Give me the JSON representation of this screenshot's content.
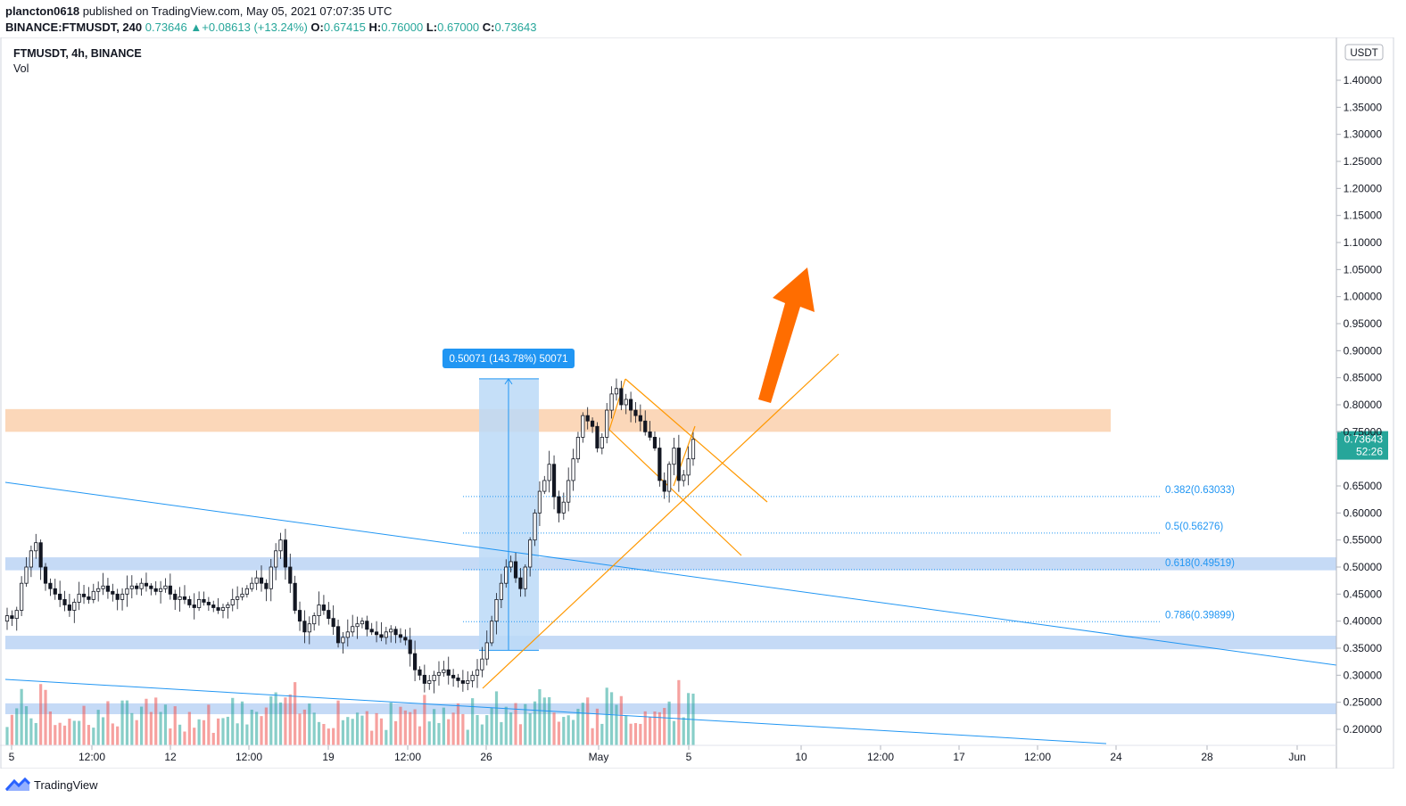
{
  "publish_line": {
    "author": "plancton0618",
    "text": " published on TradingView.com, May 05, 2021 07:07:35 UTC"
  },
  "ohlc": {
    "symbol": "BINANCE:FTMUSDT, 240",
    "last": "0.73646",
    "arrow": "▲",
    "change": "+0.08613 (+13.24%)",
    "o_label": "O:",
    "o": "0.67415",
    "h_label": "H:",
    "h": "0.76000",
    "l_label": "L:",
    "l": "0.67000",
    "c_label": "C:",
    "c": "0.73643"
  },
  "legend": {
    "symbol": "FTMUSDT, 4h, BINANCE",
    "indicator": "Vol"
  },
  "footer": {
    "brand": "TradingView"
  },
  "colors": {
    "up": "#26a69a",
    "down": "#ef5350",
    "fib": "#2196f3",
    "zone_blue": "#bbd3f5",
    "zone_orange": "#fbd3b1",
    "pattern": "#ff9800",
    "arrow": "#ff6d00"
  },
  "chart_data": {
    "type": "candlestick",
    "currency": "USDT",
    "price_axis": {
      "ticks": [
        "1.40000",
        "1.35000",
        "1.30000",
        "1.25000",
        "1.20000",
        "1.15000",
        "1.10000",
        "1.05000",
        "1.00000",
        "0.95000",
        "0.90000",
        "0.85000",
        "0.80000",
        "0.75000",
        "0.65000",
        "0.60000",
        "0.55000",
        "0.50000",
        "0.45000",
        "0.40000",
        "0.35000",
        "0.30000",
        "0.25000",
        "0.20000"
      ],
      "range": [
        0.17,
        1.44
      ]
    },
    "time_axis": {
      "ticks": [
        "5",
        "12:00",
        "12",
        "12:00",
        "19",
        "12:00",
        "26",
        "May",
        "5",
        "10",
        "12:00",
        "17",
        "12:00",
        "24",
        "28",
        "Jun"
      ]
    },
    "last_price": {
      "value": "0.73643",
      "countdown": "52:26"
    },
    "fibonacci": [
      {
        "label": "0.382(0.63033)",
        "value": 0.63033
      },
      {
        "label": "0.5(0.56276)",
        "value": 0.56276
      },
      {
        "label": "0.618(0.49519)",
        "value": 0.49519
      },
      {
        "label": "0.786(0.39899)",
        "value": 0.39899
      }
    ],
    "measure_label": "0.50071 (143.78%) 50071",
    "measure_range": [
      0.346,
      0.848
    ],
    "resistance_zone": [
      0.75,
      0.792
    ],
    "support_zones": [
      [
        0.494,
        0.518
      ],
      [
        0.348,
        0.373
      ],
      [
        0.228,
        0.248
      ]
    ],
    "trendlines": [
      {
        "from": [
          "Apr 5",
          0.655
        ],
        "to": [
          "Jun 1",
          0.318
        ]
      },
      {
        "from": [
          "Apr 5",
          0.293
        ],
        "to": [
          "May 24",
          0.18
        ]
      }
    ],
    "candles": {
      "note": "approximate 4h OHLC path from Apr 5 to May 5 2021",
      "closes": [
        0.41,
        0.405,
        0.42,
        0.47,
        0.5,
        0.53,
        0.545,
        0.5,
        0.47,
        0.46,
        0.45,
        0.44,
        0.43,
        0.42,
        0.435,
        0.45,
        0.445,
        0.44,
        0.455,
        0.46,
        0.465,
        0.455,
        0.45,
        0.44,
        0.45,
        0.46,
        0.465,
        0.46,
        0.47,
        0.465,
        0.46,
        0.455,
        0.46,
        0.465,
        0.45,
        0.44,
        0.445,
        0.44,
        0.43,
        0.425,
        0.44,
        0.435,
        0.43,
        0.425,
        0.42,
        0.425,
        0.43,
        0.44,
        0.445,
        0.45,
        0.46,
        0.47,
        0.48,
        0.47,
        0.46,
        0.5,
        0.53,
        0.55,
        0.5,
        0.47,
        0.42,
        0.4,
        0.38,
        0.395,
        0.41,
        0.43,
        0.42,
        0.405,
        0.39,
        0.36,
        0.37,
        0.38,
        0.39,
        0.395,
        0.4,
        0.385,
        0.38,
        0.375,
        0.37,
        0.38,
        0.385,
        0.375,
        0.37,
        0.365,
        0.34,
        0.31,
        0.3,
        0.285,
        0.29,
        0.3,
        0.305,
        0.31,
        0.3,
        0.295,
        0.29,
        0.285,
        0.29,
        0.3,
        0.31,
        0.33,
        0.36,
        0.4,
        0.44,
        0.47,
        0.5,
        0.51,
        0.48,
        0.46,
        0.5,
        0.55,
        0.6,
        0.64,
        0.66,
        0.69,
        0.63,
        0.6,
        0.62,
        0.66,
        0.7,
        0.74,
        0.78,
        0.77,
        0.76,
        0.72,
        0.74,
        0.79,
        0.82,
        0.83,
        0.8,
        0.81,
        0.79,
        0.78,
        0.77,
        0.75,
        0.74,
        0.72,
        0.66,
        0.64,
        0.69,
        0.72,
        0.66,
        0.67,
        0.7,
        0.736
      ]
    }
  }
}
